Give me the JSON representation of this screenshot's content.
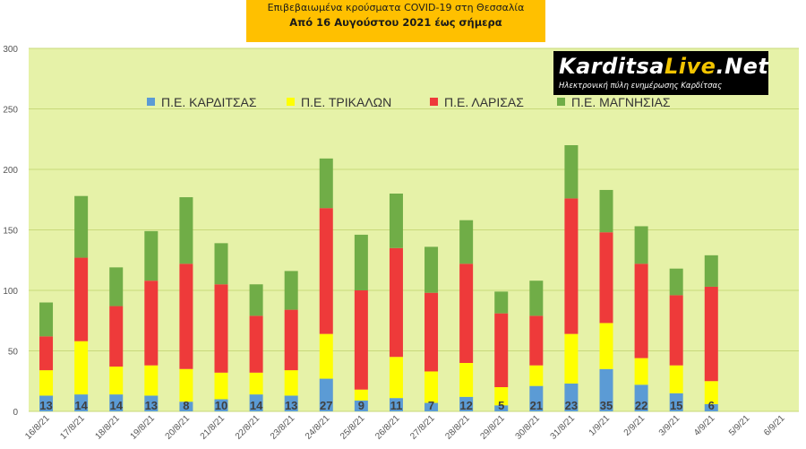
{
  "title": {
    "line1": "Επιβεβαιωμένα κρούσματα COVID-19 στη Θεσσαλία",
    "line2": "Από 16 Αυγούστου 2021 έως σήμερα"
  },
  "logo": {
    "brand_part1": "Karditsa",
    "brand_part2": "Live",
    "brand_part3": ".Net",
    "subtitle": "Ηλεκτρονική πύλη ενημέρωσης Καρδίτσας"
  },
  "colors": {
    "background": "#ffffff",
    "plot_area": "#e6f2a8",
    "gridline": "#c8d97a",
    "title_box": "#ffc000",
    "karditsa": "#5b9bd5",
    "trikala": "#ffff00",
    "larisa": "#ee3a3a",
    "magnisia": "#70ad47"
  },
  "chart_data": {
    "type": "bar",
    "stacked": true,
    "categories": [
      "16/8/21",
      "17/8/21",
      "18/8/21",
      "19/8/21",
      "20/8/21",
      "21/8/21",
      "22/8/21",
      "23/8/21",
      "24/8/21",
      "25/8/21",
      "26/8/21",
      "27/8/21",
      "28/8/21",
      "29/8/21",
      "30/8/21",
      "31/8/21",
      "1/9/21",
      "2/9/21",
      "3/9/21",
      "4/9/21",
      "5/9/21",
      "6/9/21"
    ],
    "series": [
      {
        "name": "Π.Ε. ΚΑΡΔΙΤΣΑΣ",
        "color": "#5b9bd5",
        "values": [
          13,
          14,
          14,
          13,
          8,
          10,
          14,
          13,
          27,
          9,
          11,
          7,
          12,
          5,
          21,
          23,
          35,
          22,
          15,
          6,
          0,
          0
        ]
      },
      {
        "name": "Π.Ε. ΤΡΙΚΑΛΩΝ",
        "color": "#ffff00",
        "values": [
          21,
          44,
          23,
          25,
          27,
          22,
          18,
          21,
          37,
          9,
          34,
          26,
          28,
          15,
          17,
          41,
          38,
          22,
          23,
          19,
          0,
          0
        ]
      },
      {
        "name": "Π.Ε. ΛΑΡΙΣΑΣ",
        "color": "#ee3a3a",
        "values": [
          28,
          69,
          50,
          70,
          87,
          73,
          47,
          50,
          104,
          82,
          90,
          65,
          82,
          61,
          41,
          112,
          75,
          78,
          58,
          78,
          0,
          0
        ]
      },
      {
        "name": "Π.Ε. ΜΑΓΝΗΣΙΑΣ",
        "color": "#70ad47",
        "values": [
          28,
          51,
          32,
          41,
          55,
          34,
          26,
          32,
          41,
          46,
          45,
          38,
          36,
          18,
          29,
          44,
          35,
          31,
          22,
          26,
          0,
          0
        ]
      }
    ],
    "data_labels": [
      "13",
      "14",
      "14",
      "13",
      "8",
      "10",
      "14",
      "13",
      "27",
      "9",
      "11",
      "7",
      "12",
      "5",
      "21",
      "23",
      "35",
      "22",
      "15",
      "6",
      "",
      ""
    ],
    "ylim": [
      0,
      300
    ],
    "yticks": [
      0,
      50,
      100,
      150,
      200,
      250,
      300
    ],
    "grid": true,
    "legend_position": "top"
  }
}
